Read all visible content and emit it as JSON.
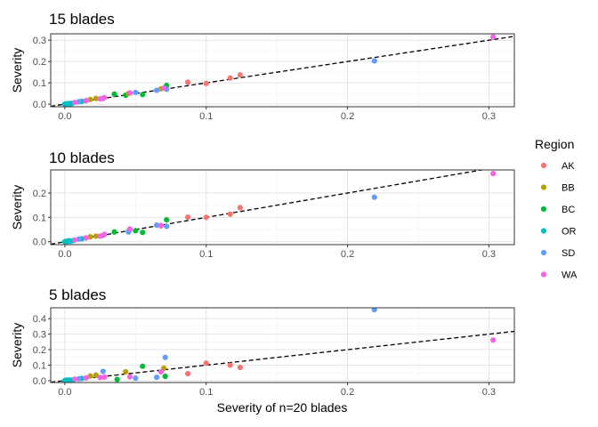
{
  "chart_data": {
    "type": "scatter",
    "xlabel": "Severity of n=20 blades",
    "ylabel": "Severity",
    "xlim": [
      -0.01,
      0.318
    ],
    "xticks": [
      "0.0",
      "0.1",
      "0.2",
      "0.3"
    ],
    "xtick_values": [
      0.0,
      0.1,
      0.2,
      0.3
    ],
    "reference_line": {
      "style": "dashed",
      "slope": 1,
      "intercept": 0
    },
    "legend": {
      "title": "Region",
      "placement": "right",
      "items": [
        "AK",
        "BB",
        "BC",
        "OR",
        "SD",
        "WA"
      ]
    },
    "colors": {
      "AK": "#F8766D",
      "BB": "#B79F00",
      "BC": "#00BA38",
      "OR": "#00BFC4",
      "SD": "#619CFF",
      "WA": "#F564E3"
    },
    "grid": true,
    "panels": [
      {
        "title": "15 blades",
        "ylim": [
          -0.012,
          0.33
        ],
        "yticks": [
          "0.0",
          "0.1",
          "0.2",
          "0.3"
        ],
        "ytick_values": [
          0.0,
          0.1,
          0.2,
          0.3
        ],
        "points": [
          {
            "x": 0.087,
            "y": 0.103,
            "region": "AK"
          },
          {
            "x": 0.1,
            "y": 0.097,
            "region": "AK"
          },
          {
            "x": 0.117,
            "y": 0.123,
            "region": "AK"
          },
          {
            "x": 0.124,
            "y": 0.137,
            "region": "AK"
          },
          {
            "x": 0.035,
            "y": 0.047,
            "region": "BC"
          },
          {
            "x": 0.043,
            "y": 0.042,
            "region": "BC"
          },
          {
            "x": 0.055,
            "y": 0.045,
            "region": "BC"
          },
          {
            "x": 0.072,
            "y": 0.088,
            "region": "BC"
          },
          {
            "x": 0.018,
            "y": 0.022,
            "region": "BB"
          },
          {
            "x": 0.022,
            "y": 0.027,
            "region": "BB"
          },
          {
            "x": 0.045,
            "y": 0.05,
            "region": "BB"
          },
          {
            "x": 0.068,
            "y": 0.072,
            "region": "BB"
          },
          {
            "x": 0.0,
            "y": 0.0,
            "region": "OR"
          },
          {
            "x": 0.001,
            "y": 0.002,
            "region": "OR"
          },
          {
            "x": 0.002,
            "y": 0.001,
            "region": "OR"
          },
          {
            "x": 0.003,
            "y": 0.003,
            "region": "OR"
          },
          {
            "x": 0.004,
            "y": 0.002,
            "region": "OR"
          },
          {
            "x": 0.005,
            "y": 0.004,
            "region": "OR"
          },
          {
            "x": 0.012,
            "y": 0.013,
            "region": "OR"
          },
          {
            "x": 0.01,
            "y": 0.012,
            "region": "SD"
          },
          {
            "x": 0.015,
            "y": 0.016,
            "region": "SD"
          },
          {
            "x": 0.027,
            "y": 0.027,
            "region": "SD"
          },
          {
            "x": 0.05,
            "y": 0.055,
            "region": "SD"
          },
          {
            "x": 0.065,
            "y": 0.065,
            "region": "SD"
          },
          {
            "x": 0.072,
            "y": 0.07,
            "region": "SD"
          },
          {
            "x": 0.219,
            "y": 0.203,
            "region": "SD"
          },
          {
            "x": 0.007,
            "y": 0.008,
            "region": "WA"
          },
          {
            "x": 0.015,
            "y": 0.017,
            "region": "WA"
          },
          {
            "x": 0.025,
            "y": 0.025,
            "region": "WA"
          },
          {
            "x": 0.028,
            "y": 0.031,
            "region": "WA"
          },
          {
            "x": 0.046,
            "y": 0.053,
            "region": "WA"
          },
          {
            "x": 0.07,
            "y": 0.075,
            "region": "WA"
          },
          {
            "x": 0.303,
            "y": 0.315,
            "region": "WA"
          }
        ]
      },
      {
        "title": "10 blades",
        "ylim": [
          -0.012,
          0.295
        ],
        "yticks": [
          "0.0",
          "0.1",
          "0.2"
        ],
        "ytick_values": [
          0.0,
          0.1,
          0.2
        ],
        "points": [
          {
            "x": 0.087,
            "y": 0.101,
            "region": "AK"
          },
          {
            "x": 0.1,
            "y": 0.1,
            "region": "AK"
          },
          {
            "x": 0.117,
            "y": 0.113,
            "region": "AK"
          },
          {
            "x": 0.124,
            "y": 0.14,
            "region": "AK"
          },
          {
            "x": 0.035,
            "y": 0.04,
            "region": "BC"
          },
          {
            "x": 0.05,
            "y": 0.045,
            "region": "BC"
          },
          {
            "x": 0.055,
            "y": 0.038,
            "region": "BC"
          },
          {
            "x": 0.072,
            "y": 0.09,
            "region": "BC"
          },
          {
            "x": 0.018,
            "y": 0.02,
            "region": "BB"
          },
          {
            "x": 0.022,
            "y": 0.023,
            "region": "BB"
          },
          {
            "x": 0.045,
            "y": 0.042,
            "region": "BB"
          },
          {
            "x": 0.068,
            "y": 0.065,
            "region": "BB"
          },
          {
            "x": 0.0,
            "y": 0.0,
            "region": "OR"
          },
          {
            "x": 0.001,
            "y": 0.002,
            "region": "OR"
          },
          {
            "x": 0.002,
            "y": 0.001,
            "region": "OR"
          },
          {
            "x": 0.003,
            "y": 0.004,
            "region": "OR"
          },
          {
            "x": 0.004,
            "y": 0.002,
            "region": "OR"
          },
          {
            "x": 0.006,
            "y": 0.005,
            "region": "OR"
          },
          {
            "x": 0.012,
            "y": 0.012,
            "region": "OR"
          },
          {
            "x": 0.01,
            "y": 0.011,
            "region": "SD"
          },
          {
            "x": 0.015,
            "y": 0.015,
            "region": "SD"
          },
          {
            "x": 0.027,
            "y": 0.026,
            "region": "SD"
          },
          {
            "x": 0.045,
            "y": 0.04,
            "region": "SD"
          },
          {
            "x": 0.065,
            "y": 0.068,
            "region": "SD"
          },
          {
            "x": 0.072,
            "y": 0.063,
            "region": "SD"
          },
          {
            "x": 0.219,
            "y": 0.183,
            "region": "SD"
          },
          {
            "x": 0.007,
            "y": 0.007,
            "region": "WA"
          },
          {
            "x": 0.015,
            "y": 0.016,
            "region": "WA"
          },
          {
            "x": 0.025,
            "y": 0.023,
            "region": "WA"
          },
          {
            "x": 0.028,
            "y": 0.03,
            "region": "WA"
          },
          {
            "x": 0.046,
            "y": 0.052,
            "region": "WA"
          },
          {
            "x": 0.068,
            "y": 0.067,
            "region": "WA"
          },
          {
            "x": 0.303,
            "y": 0.28,
            "region": "WA"
          }
        ]
      },
      {
        "title": "5 blades",
        "ylim": [
          -0.012,
          0.47
        ],
        "yticks": [
          "0.0",
          "0.1",
          "0.2",
          "0.3",
          "0.4"
        ],
        "ytick_values": [
          0.0,
          0.1,
          0.2,
          0.3,
          0.4
        ],
        "points": [
          {
            "x": 0.087,
            "y": 0.045,
            "region": "AK"
          },
          {
            "x": 0.1,
            "y": 0.113,
            "region": "AK"
          },
          {
            "x": 0.117,
            "y": 0.1,
            "region": "AK"
          },
          {
            "x": 0.124,
            "y": 0.085,
            "region": "AK"
          },
          {
            "x": 0.037,
            "y": 0.008,
            "region": "BC"
          },
          {
            "x": 0.055,
            "y": 0.093,
            "region": "BC"
          },
          {
            "x": 0.071,
            "y": 0.028,
            "region": "BC"
          },
          {
            "x": 0.018,
            "y": 0.03,
            "region": "BB"
          },
          {
            "x": 0.022,
            "y": 0.036,
            "region": "BB"
          },
          {
            "x": 0.043,
            "y": 0.057,
            "region": "BB"
          },
          {
            "x": 0.07,
            "y": 0.08,
            "region": "BB"
          },
          {
            "x": 0.0,
            "y": 0.0,
            "region": "OR"
          },
          {
            "x": 0.001,
            "y": 0.003,
            "region": "OR"
          },
          {
            "x": 0.002,
            "y": 0.001,
            "region": "OR"
          },
          {
            "x": 0.003,
            "y": 0.004,
            "region": "OR"
          },
          {
            "x": 0.004,
            "y": 0.002,
            "region": "OR"
          },
          {
            "x": 0.006,
            "y": 0.006,
            "region": "OR"
          },
          {
            "x": 0.012,
            "y": 0.014,
            "region": "OR"
          },
          {
            "x": 0.01,
            "y": 0.012,
            "region": "SD"
          },
          {
            "x": 0.027,
            "y": 0.06,
            "region": "SD"
          },
          {
            "x": 0.05,
            "y": 0.016,
            "region": "SD"
          },
          {
            "x": 0.065,
            "y": 0.022,
            "region": "SD"
          },
          {
            "x": 0.071,
            "y": 0.15,
            "region": "SD"
          },
          {
            "x": 0.219,
            "y": 0.458,
            "region": "SD"
          },
          {
            "x": 0.007,
            "y": 0.01,
            "region": "WA"
          },
          {
            "x": 0.015,
            "y": 0.018,
            "region": "WA"
          },
          {
            "x": 0.025,
            "y": 0.021,
            "region": "WA"
          },
          {
            "x": 0.028,
            "y": 0.023,
            "region": "WA"
          },
          {
            "x": 0.046,
            "y": 0.025,
            "region": "WA"
          },
          {
            "x": 0.068,
            "y": 0.057,
            "region": "WA"
          },
          {
            "x": 0.303,
            "y": 0.262,
            "region": "WA"
          }
        ]
      }
    ]
  }
}
